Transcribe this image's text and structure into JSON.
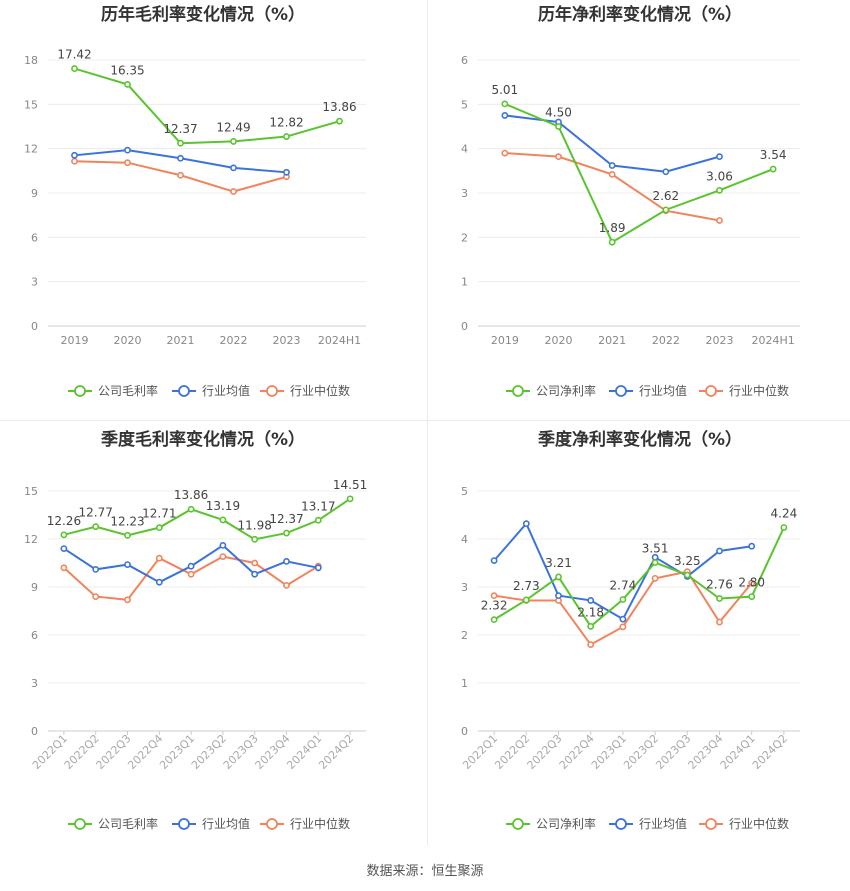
{
  "colors": {
    "company": "#5ac42e",
    "industry_avg": "#3b73d9",
    "industry_median": "#f0845c",
    "axis_text": "#888888",
    "label_text": "#444444"
  },
  "source": "数据来源：恒生聚源",
  "chart_data": [
    {
      "type": "line",
      "title": "历年毛利率变化情况（%）",
      "categories": [
        "2019",
        "2020",
        "2021",
        "2022",
        "2023",
        "2024H1"
      ],
      "ylim": [
        0,
        18
      ],
      "yticks": [
        0,
        3,
        6,
        9,
        12,
        15,
        18
      ],
      "grid": true,
      "legend": "bottom",
      "series": [
        {
          "name": "公司毛利率",
          "color": "#5ac42e",
          "labels": true,
          "values": [
            17.42,
            16.35,
            12.37,
            12.49,
            12.82,
            13.86
          ]
        },
        {
          "name": "行业均值",
          "color": "#3b73d9",
          "labels": false,
          "values": [
            11.55,
            11.9,
            11.35,
            10.7,
            10.4,
            null
          ]
        },
        {
          "name": "行业中位数",
          "color": "#f0845c",
          "labels": false,
          "values": [
            11.15,
            11.05,
            10.2,
            9.1,
            10.1,
            null
          ]
        }
      ]
    },
    {
      "type": "line",
      "title": "历年净利率变化情况（%）",
      "categories": [
        "2019",
        "2020",
        "2021",
        "2022",
        "2023",
        "2024H1"
      ],
      "ylim": [
        0,
        6
      ],
      "yticks": [
        0,
        1,
        2,
        3,
        4,
        5,
        6
      ],
      "grid": true,
      "legend": "bottom",
      "series": [
        {
          "name": "公司净利率",
          "color": "#5ac42e",
          "labels": true,
          "values": [
            5.01,
            4.5,
            1.89,
            2.62,
            3.06,
            3.54
          ]
        },
        {
          "name": "行业均值",
          "color": "#3b73d9",
          "labels": false,
          "values": [
            4.75,
            4.6,
            3.62,
            3.48,
            3.82,
            null
          ]
        },
        {
          "name": "行业中位数",
          "color": "#f0845c",
          "labels": false,
          "values": [
            3.9,
            3.82,
            3.42,
            2.6,
            2.38,
            null
          ]
        }
      ]
    },
    {
      "type": "line",
      "title": "季度毛利率变化情况（%）",
      "categories": [
        "2022Q1",
        "2022Q2",
        "2022Q3",
        "2022Q4",
        "2023Q1",
        "2023Q2",
        "2023Q3",
        "2023Q4",
        "2024Q1",
        "2024Q2"
      ],
      "ylim": [
        0,
        15
      ],
      "yticks": [
        0,
        3,
        6,
        9,
        12,
        15
      ],
      "grid": true,
      "legend": "bottom",
      "series": [
        {
          "name": "公司毛利率",
          "color": "#5ac42e",
          "labels": true,
          "values": [
            12.26,
            12.77,
            12.23,
            12.71,
            13.86,
            13.19,
            11.98,
            12.37,
            13.17,
            14.51
          ]
        },
        {
          "name": "行业均值",
          "color": "#3b73d9",
          "labels": false,
          "values": [
            11.4,
            10.1,
            10.4,
            9.3,
            10.3,
            11.6,
            9.8,
            10.6,
            10.2,
            null
          ]
        },
        {
          "name": "行业中位数",
          "color": "#f0845c",
          "labels": false,
          "values": [
            10.2,
            8.4,
            8.2,
            10.8,
            9.8,
            10.9,
            10.5,
            9.1,
            10.3,
            null
          ]
        }
      ]
    },
    {
      "type": "line",
      "title": "季度净利率变化情况（%）",
      "categories": [
        "2022Q1",
        "2022Q2",
        "2022Q3",
        "2022Q4",
        "2023Q1",
        "2023Q2",
        "2023Q3",
        "2023Q4",
        "2024Q1",
        "2024Q2"
      ],
      "ylim": [
        0,
        5
      ],
      "yticks": [
        0,
        1,
        2,
        3,
        4,
        5
      ],
      "grid": true,
      "legend": "bottom",
      "series": [
        {
          "name": "公司净利率",
          "color": "#5ac42e",
          "labels": true,
          "values": [
            2.32,
            2.73,
            3.21,
            2.18,
            2.74,
            3.51,
            3.25,
            2.76,
            2.8,
            4.24
          ]
        },
        {
          "name": "行业均值",
          "color": "#3b73d9",
          "labels": false,
          "values": [
            3.55,
            4.32,
            2.82,
            2.72,
            2.33,
            3.62,
            3.22,
            3.75,
            3.85,
            null
          ]
        },
        {
          "name": "行业中位数",
          "color": "#f0845c",
          "labels": false,
          "values": [
            2.82,
            2.72,
            2.72,
            1.8,
            2.17,
            3.18,
            3.32,
            2.27,
            3.08,
            null
          ]
        }
      ]
    }
  ]
}
